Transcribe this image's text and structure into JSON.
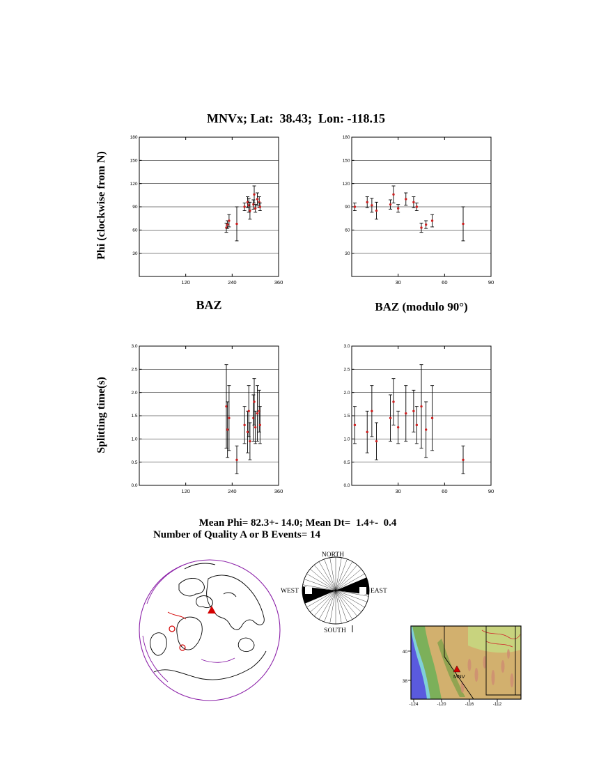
{
  "title": "MNVx; Lat:  38.43;  Lon: -118.15",
  "labels": {
    "phi_axis": "Phi (clockwise from N)",
    "dt_axis": "Splitting time(s)",
    "baz": "BAZ",
    "baz_mod": "BAZ (modulo 90°)"
  },
  "stats": {
    "line1": "Mean Phi= 82.3+- 14.0; Mean Dt=  1.4+-  0.4",
    "line2": "Number of Quality A or B Events= 14"
  },
  "rose_labels": {
    "north": "NORTH",
    "east": "EAST",
    "south": "SOUTH",
    "west": "WEST"
  },
  "map_inset": {
    "station": "MNV",
    "yticks": [
      "40",
      "38"
    ],
    "xticks": [
      "-124",
      "-120",
      "-116",
      "-112"
    ]
  },
  "colors": {
    "point": "#cc2020",
    "error_bar": "#000000",
    "globe_outline": "#8b20a8",
    "station_marker": "#d40000"
  },
  "chart_data": {
    "type": "scatter",
    "station": "MNVx",
    "lat": 38.43,
    "lon": -118.15,
    "mean_phi": 82.3,
    "mean_phi_err": 14.0,
    "mean_dt": 1.4,
    "mean_dt_err": 0.4,
    "n_events": 14,
    "events": [
      {
        "baz": 272,
        "phi": 90,
        "phi_err": 5,
        "dt": 1.3,
        "dt_err": 0.4
      },
      {
        "baz": 280,
        "phi": 96,
        "phi_err": 7,
        "dt": 1.15,
        "dt_err": 0.45
      },
      {
        "baz": 283,
        "phi": 92,
        "phi_err": 9,
        "dt": 1.6,
        "dt_err": 0.55
      },
      {
        "baz": 286,
        "phi": 85,
        "phi_err": 11,
        "dt": 0.95,
        "dt_err": 0.4
      },
      {
        "baz": 295,
        "phi": 93,
        "phi_err": 6,
        "dt": 1.45,
        "dt_err": 0.5
      },
      {
        "baz": 297,
        "phi": 106,
        "phi_err": 11,
        "dt": 1.8,
        "dt_err": 0.5
      },
      {
        "baz": 300,
        "phi": 88,
        "phi_err": 5,
        "dt": 1.25,
        "dt_err": 0.35
      },
      {
        "baz": 305,
        "phi": 100,
        "phi_err": 8,
        "dt": 1.55,
        "dt_err": 0.6
      },
      {
        "baz": 310,
        "phi": 96,
        "phi_err": 7,
        "dt": 1.6,
        "dt_err": 0.45
      },
      {
        "baz": 312,
        "phi": 90,
        "phi_err": 5,
        "dt": 1.3,
        "dt_err": 0.4
      },
      {
        "baz": 225,
        "phi": 63,
        "phi_err": 6,
        "dt": 1.7,
        "dt_err": 0.9
      },
      {
        "baz": 228,
        "phi": 67,
        "phi_err": 5,
        "dt": 1.2,
        "dt_err": 0.6
      },
      {
        "baz": 232,
        "phi": 72,
        "phi_err": 8,
        "dt": 1.45,
        "dt_err": 0.7
      },
      {
        "baz": 252,
        "phi": 68,
        "phi_err": 22,
        "dt": 0.55,
        "dt_err": 0.3
      }
    ],
    "charts": [
      {
        "id": "phi_vs_baz",
        "xlabel": "BAZ",
        "ylabel": "Phi (clockwise from N)",
        "x_field": "baz",
        "mod90": false,
        "y_field": "phi",
        "err_field": "phi_err",
        "xlim": [
          0,
          360
        ],
        "ylim": [
          0,
          180
        ],
        "xticks": [
          120,
          240,
          360
        ],
        "yticks": [
          30,
          60,
          90,
          120,
          150,
          180
        ],
        "ytick_labels": [
          "30",
          "60",
          "90",
          "120",
          "150",
          "180"
        ]
      },
      {
        "id": "phi_vs_baz_mod90",
        "xlabel": "BAZ (modulo 90°)",
        "ylabel": "Phi (clockwise from N)",
        "x_field": "baz",
        "mod90": true,
        "y_field": "phi",
        "err_field": "phi_err",
        "xlim": [
          0,
          90
        ],
        "ylim": [
          0,
          180
        ],
        "xticks": [
          30,
          60,
          90
        ],
        "yticks": [
          30,
          60,
          90,
          120,
          150,
          180
        ],
        "ytick_labels": [
          "30",
          "60",
          "90",
          "120",
          "150",
          "180"
        ]
      },
      {
        "id": "dt_vs_baz",
        "xlabel": "BAZ",
        "ylabel": "Splitting time(s)",
        "x_field": "baz",
        "mod90": false,
        "y_field": "dt",
        "err_field": "dt_err",
        "xlim": [
          0,
          360
        ],
        "ylim": [
          0,
          3
        ],
        "xticks": [
          120,
          240,
          360
        ],
        "yticks": [
          0,
          0.5,
          1,
          1.5,
          2,
          2.5,
          3
        ],
        "ytick_labels": [
          "0.0",
          "0.5",
          "1.0",
          "1.5",
          "2.0",
          "2.5",
          "3.0"
        ]
      },
      {
        "id": "dt_vs_baz_mod90",
        "xlabel": "BAZ (modulo 90°)",
        "ylabel": "Splitting time(s)",
        "x_field": "baz",
        "mod90": true,
        "y_field": "dt",
        "err_field": "dt_err",
        "xlim": [
          0,
          90
        ],
        "ylim": [
          0,
          3
        ],
        "xticks": [
          30,
          60,
          90
        ],
        "yticks": [
          0,
          0.5,
          1,
          1.5,
          2,
          2.5,
          3
        ],
        "ytick_labels": [
          "0.0",
          "0.5",
          "1.0",
          "1.5",
          "2.0",
          "2.5",
          "3.0"
        ]
      }
    ],
    "rose": {
      "spoke_step_deg": 10,
      "wedges": [
        [
          67,
          97
        ],
        [
          247,
          277
        ]
      ]
    }
  }
}
